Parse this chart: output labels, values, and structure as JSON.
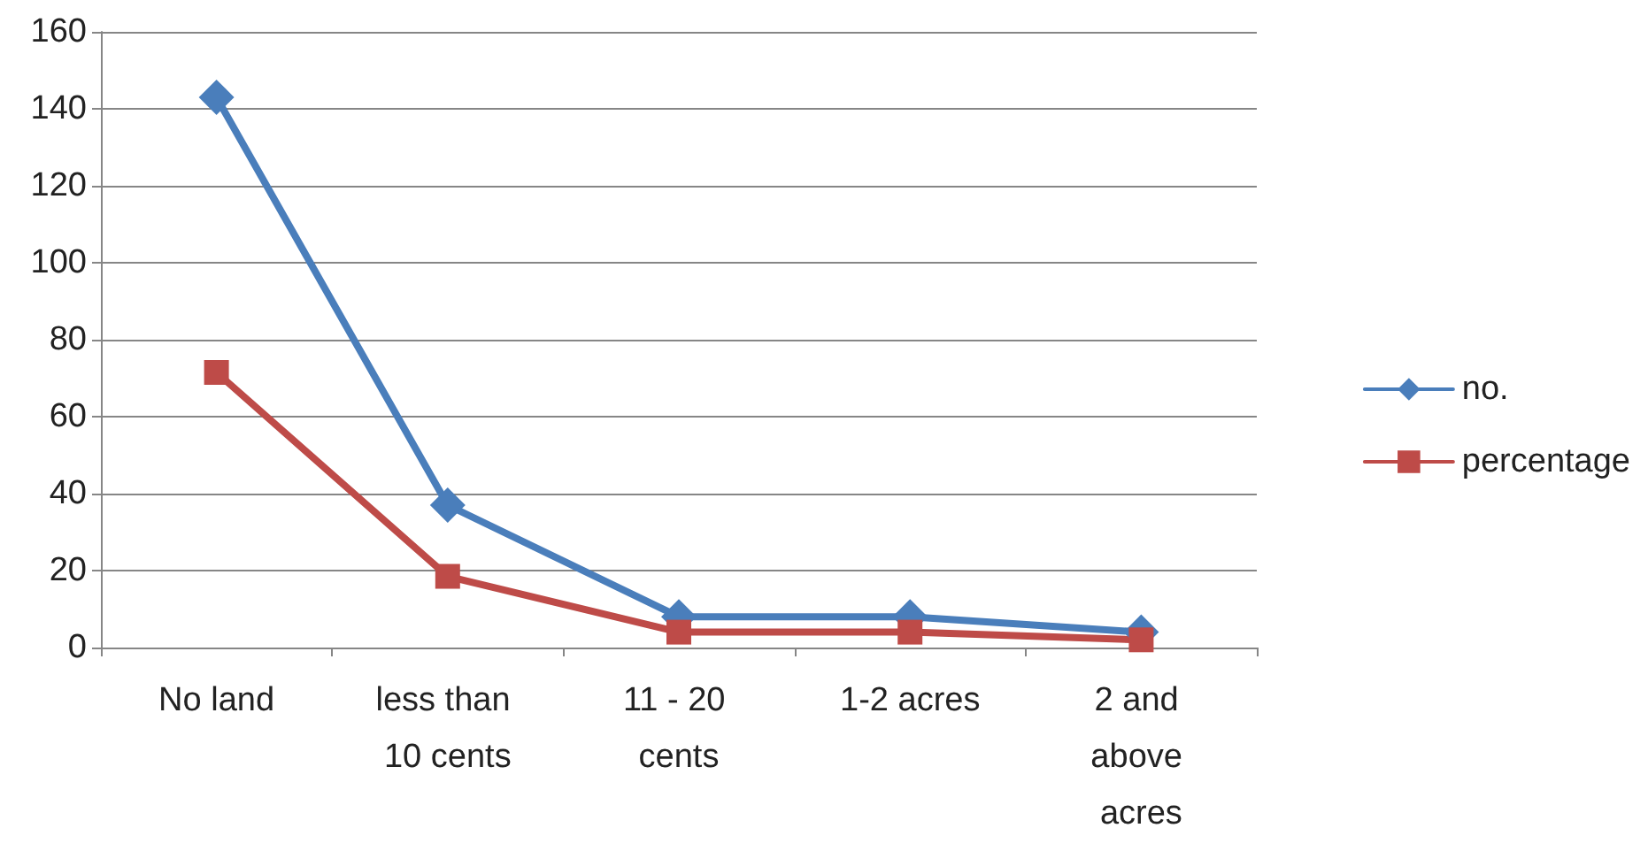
{
  "chart_data": {
    "type": "line",
    "categories": [
      "No land",
      "less than 10 cents",
      "11 - 20 cents",
      "1-2 acres",
      "2 and above acres"
    ],
    "series": [
      {
        "name": "no.",
        "color": "#4a7ebb",
        "marker": "diamond",
        "values": [
          143,
          37,
          8,
          8,
          4
        ]
      },
      {
        "name": "percentage",
        "color": "#be4b48",
        "marker": "square",
        "values": [
          71.5,
          18.5,
          4,
          4,
          2
        ]
      }
    ],
    "ylim": [
      0,
      160
    ],
    "yticks": [
      0,
      20,
      40,
      60,
      80,
      100,
      120,
      140,
      160
    ],
    "grid": "y",
    "legend": "right",
    "line_style": "solid"
  }
}
